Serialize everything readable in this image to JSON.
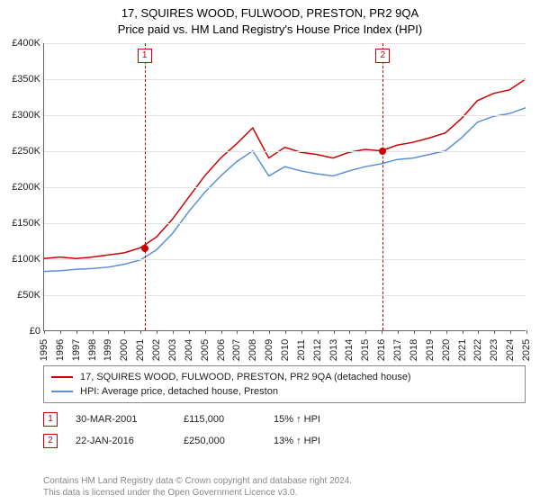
{
  "title": {
    "line1": "17, SQUIRES WOOD, FULWOOD, PRESTON, PR2 9QA",
    "line2": "Price paid vs. HM Land Registry's House Price Index (HPI)"
  },
  "chart": {
    "type": "line",
    "background_color": "#ffffff",
    "grid_color": "#e2e2e2",
    "axis_color": "#666666",
    "ylim": [
      0,
      400000
    ],
    "ytick_step": 50000,
    "ylabels": [
      "£0",
      "£50K",
      "£100K",
      "£150K",
      "£200K",
      "£250K",
      "£300K",
      "£350K",
      "£400K"
    ],
    "xlim": [
      1995,
      2025
    ],
    "xlabels": [
      "1995",
      "1996",
      "1997",
      "1998",
      "1999",
      "2000",
      "2001",
      "2002",
      "2003",
      "2004",
      "2005",
      "2006",
      "2007",
      "2008",
      "2009",
      "2010",
      "2011",
      "2012",
      "2013",
      "2014",
      "2015",
      "2016",
      "2017",
      "2018",
      "2019",
      "2020",
      "2021",
      "2022",
      "2023",
      "2024",
      "2025"
    ],
    "series": [
      {
        "name": "price_paid",
        "color": "#cc0000",
        "line_width": 1.5,
        "points": [
          [
            1995,
            100000
          ],
          [
            1996,
            102000
          ],
          [
            1997,
            100000
          ],
          [
            1998,
            102000
          ],
          [
            1999,
            105000
          ],
          [
            2000,
            108000
          ],
          [
            2001,
            115000
          ],
          [
            2002,
            130000
          ],
          [
            2003,
            155000
          ],
          [
            2004,
            185000
          ],
          [
            2005,
            215000
          ],
          [
            2006,
            240000
          ],
          [
            2007,
            260000
          ],
          [
            2008,
            282000
          ],
          [
            2009,
            240000
          ],
          [
            2010,
            255000
          ],
          [
            2011,
            248000
          ],
          [
            2012,
            245000
          ],
          [
            2013,
            240000
          ],
          [
            2014,
            248000
          ],
          [
            2015,
            252000
          ],
          [
            2016,
            250000
          ],
          [
            2017,
            258000
          ],
          [
            2018,
            262000
          ],
          [
            2019,
            268000
          ],
          [
            2020,
            275000
          ],
          [
            2021,
            295000
          ],
          [
            2022,
            320000
          ],
          [
            2023,
            330000
          ],
          [
            2024,
            335000
          ],
          [
            2025,
            350000
          ]
        ]
      },
      {
        "name": "hpi",
        "color": "#5a8fd6",
        "line_width": 1.5,
        "points": [
          [
            1995,
            82000
          ],
          [
            1996,
            83000
          ],
          [
            1997,
            85000
          ],
          [
            1998,
            86000
          ],
          [
            1999,
            88000
          ],
          [
            2000,
            92000
          ],
          [
            2001,
            98000
          ],
          [
            2002,
            112000
          ],
          [
            2003,
            135000
          ],
          [
            2004,
            165000
          ],
          [
            2005,
            192000
          ],
          [
            2006,
            215000
          ],
          [
            2007,
            235000
          ],
          [
            2008,
            250000
          ],
          [
            2009,
            215000
          ],
          [
            2010,
            228000
          ],
          [
            2011,
            222000
          ],
          [
            2012,
            218000
          ],
          [
            2013,
            215000
          ],
          [
            2014,
            222000
          ],
          [
            2015,
            228000
          ],
          [
            2016,
            232000
          ],
          [
            2017,
            238000
          ],
          [
            2018,
            240000
          ],
          [
            2019,
            245000
          ],
          [
            2020,
            250000
          ],
          [
            2021,
            268000
          ],
          [
            2022,
            290000
          ],
          [
            2023,
            298000
          ],
          [
            2024,
            302000
          ],
          [
            2025,
            310000
          ]
        ]
      }
    ],
    "markers": [
      {
        "id": "1",
        "x": 2001.25,
        "y": 115000
      },
      {
        "id": "2",
        "x": 2016.06,
        "y": 250000
      }
    ]
  },
  "legend": {
    "items": [
      {
        "color": "#cc0000",
        "label": "17, SQUIRES WOOD, FULWOOD, PRESTON, PR2 9QA (detached house)"
      },
      {
        "color": "#5a8fd6",
        "label": "HPI: Average price, detached house, Preston"
      }
    ]
  },
  "events": [
    {
      "id": "1",
      "date": "30-MAR-2001",
      "price": "£115,000",
      "hpi": "15% ↑ HPI"
    },
    {
      "id": "2",
      "date": "22-JAN-2016",
      "price": "£250,000",
      "hpi": "13% ↑ HPI"
    }
  ],
  "footer": {
    "line1": "Contains HM Land Registry data © Crown copyright and database right 2024.",
    "line2": "This data is licensed under the Open Government Licence v3.0."
  }
}
